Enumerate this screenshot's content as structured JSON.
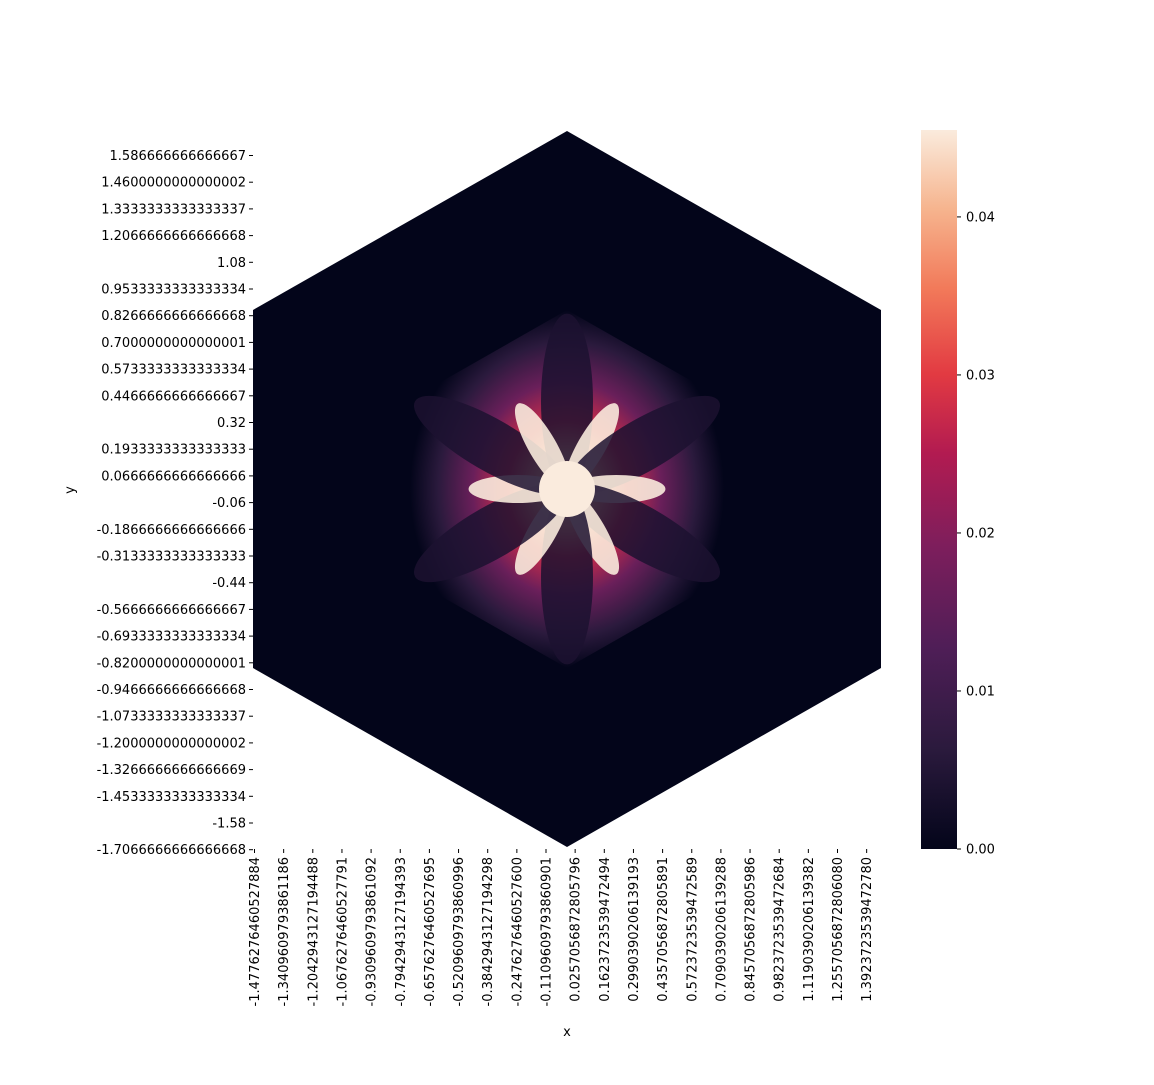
{
  "chart_data": {
    "type": "heatmap",
    "xlabel": "x",
    "ylabel": "y",
    "x_tick_labels": [
      "-1.4776276460527884",
      "-1.3409609793861186",
      "-1.2042943127194488",
      "-1.0676276460527791",
      "-0.9309609793861092",
      "-0.7942943127194393",
      "-0.6576276460527695",
      "-0.5209609793860996",
      "-0.3842943127194298",
      "-0.2476276460527600",
      "-0.1109609793860901",
      "0.0257056872805796",
      "0.1623723539472494",
      "0.2990390206139193",
      "0.4357056872805891",
      "0.5723723539472589",
      "0.7090390206139288",
      "0.8457056872805986",
      "0.9823723539472684",
      "1.1190390206139382",
      "1.2557056872806080",
      "1.3923723539472780"
    ],
    "y_tick_labels": [
      "1.586666666666667",
      "1.4600000000000002",
      "1.3333333333333337",
      "1.2066666666666668",
      "1.08",
      "0.9533333333333334",
      "0.8266666666666668",
      "0.7000000000000001",
      "0.5733333333333334",
      "0.4466666666666667",
      "0.32",
      "0.1933333333333333",
      "0.0666666666666666",
      "-0.06",
      "-0.1866666666666666",
      "-0.3133333333333333",
      "-0.44",
      "-0.5666666666666667",
      "-0.6933333333333334",
      "-0.8200000000000001",
      "-0.9466666666666668",
      "-1.0733333333333337",
      "-1.2000000000000002",
      "-1.3266666666666669",
      "-1.4533333333333334",
      "-1.58",
      "-1.7066666666666668"
    ],
    "colorbar": {
      "min": 0.0,
      "max": 0.0455,
      "ticks": [
        "0.00",
        "0.01",
        "0.02",
        "0.03",
        "0.04"
      ],
      "tick_values": [
        0.0,
        0.01,
        0.02,
        0.03,
        0.04
      ],
      "colormap": "rocket"
    },
    "field": {
      "description_shape": "hexagonal domain, mostly near zero; bright six-petal flower pattern near the center",
      "outer_hexagon_value": 0.0,
      "inner_region_radius_fraction": 0.5,
      "petals": 6,
      "peak_value": 0.0455
    }
  }
}
